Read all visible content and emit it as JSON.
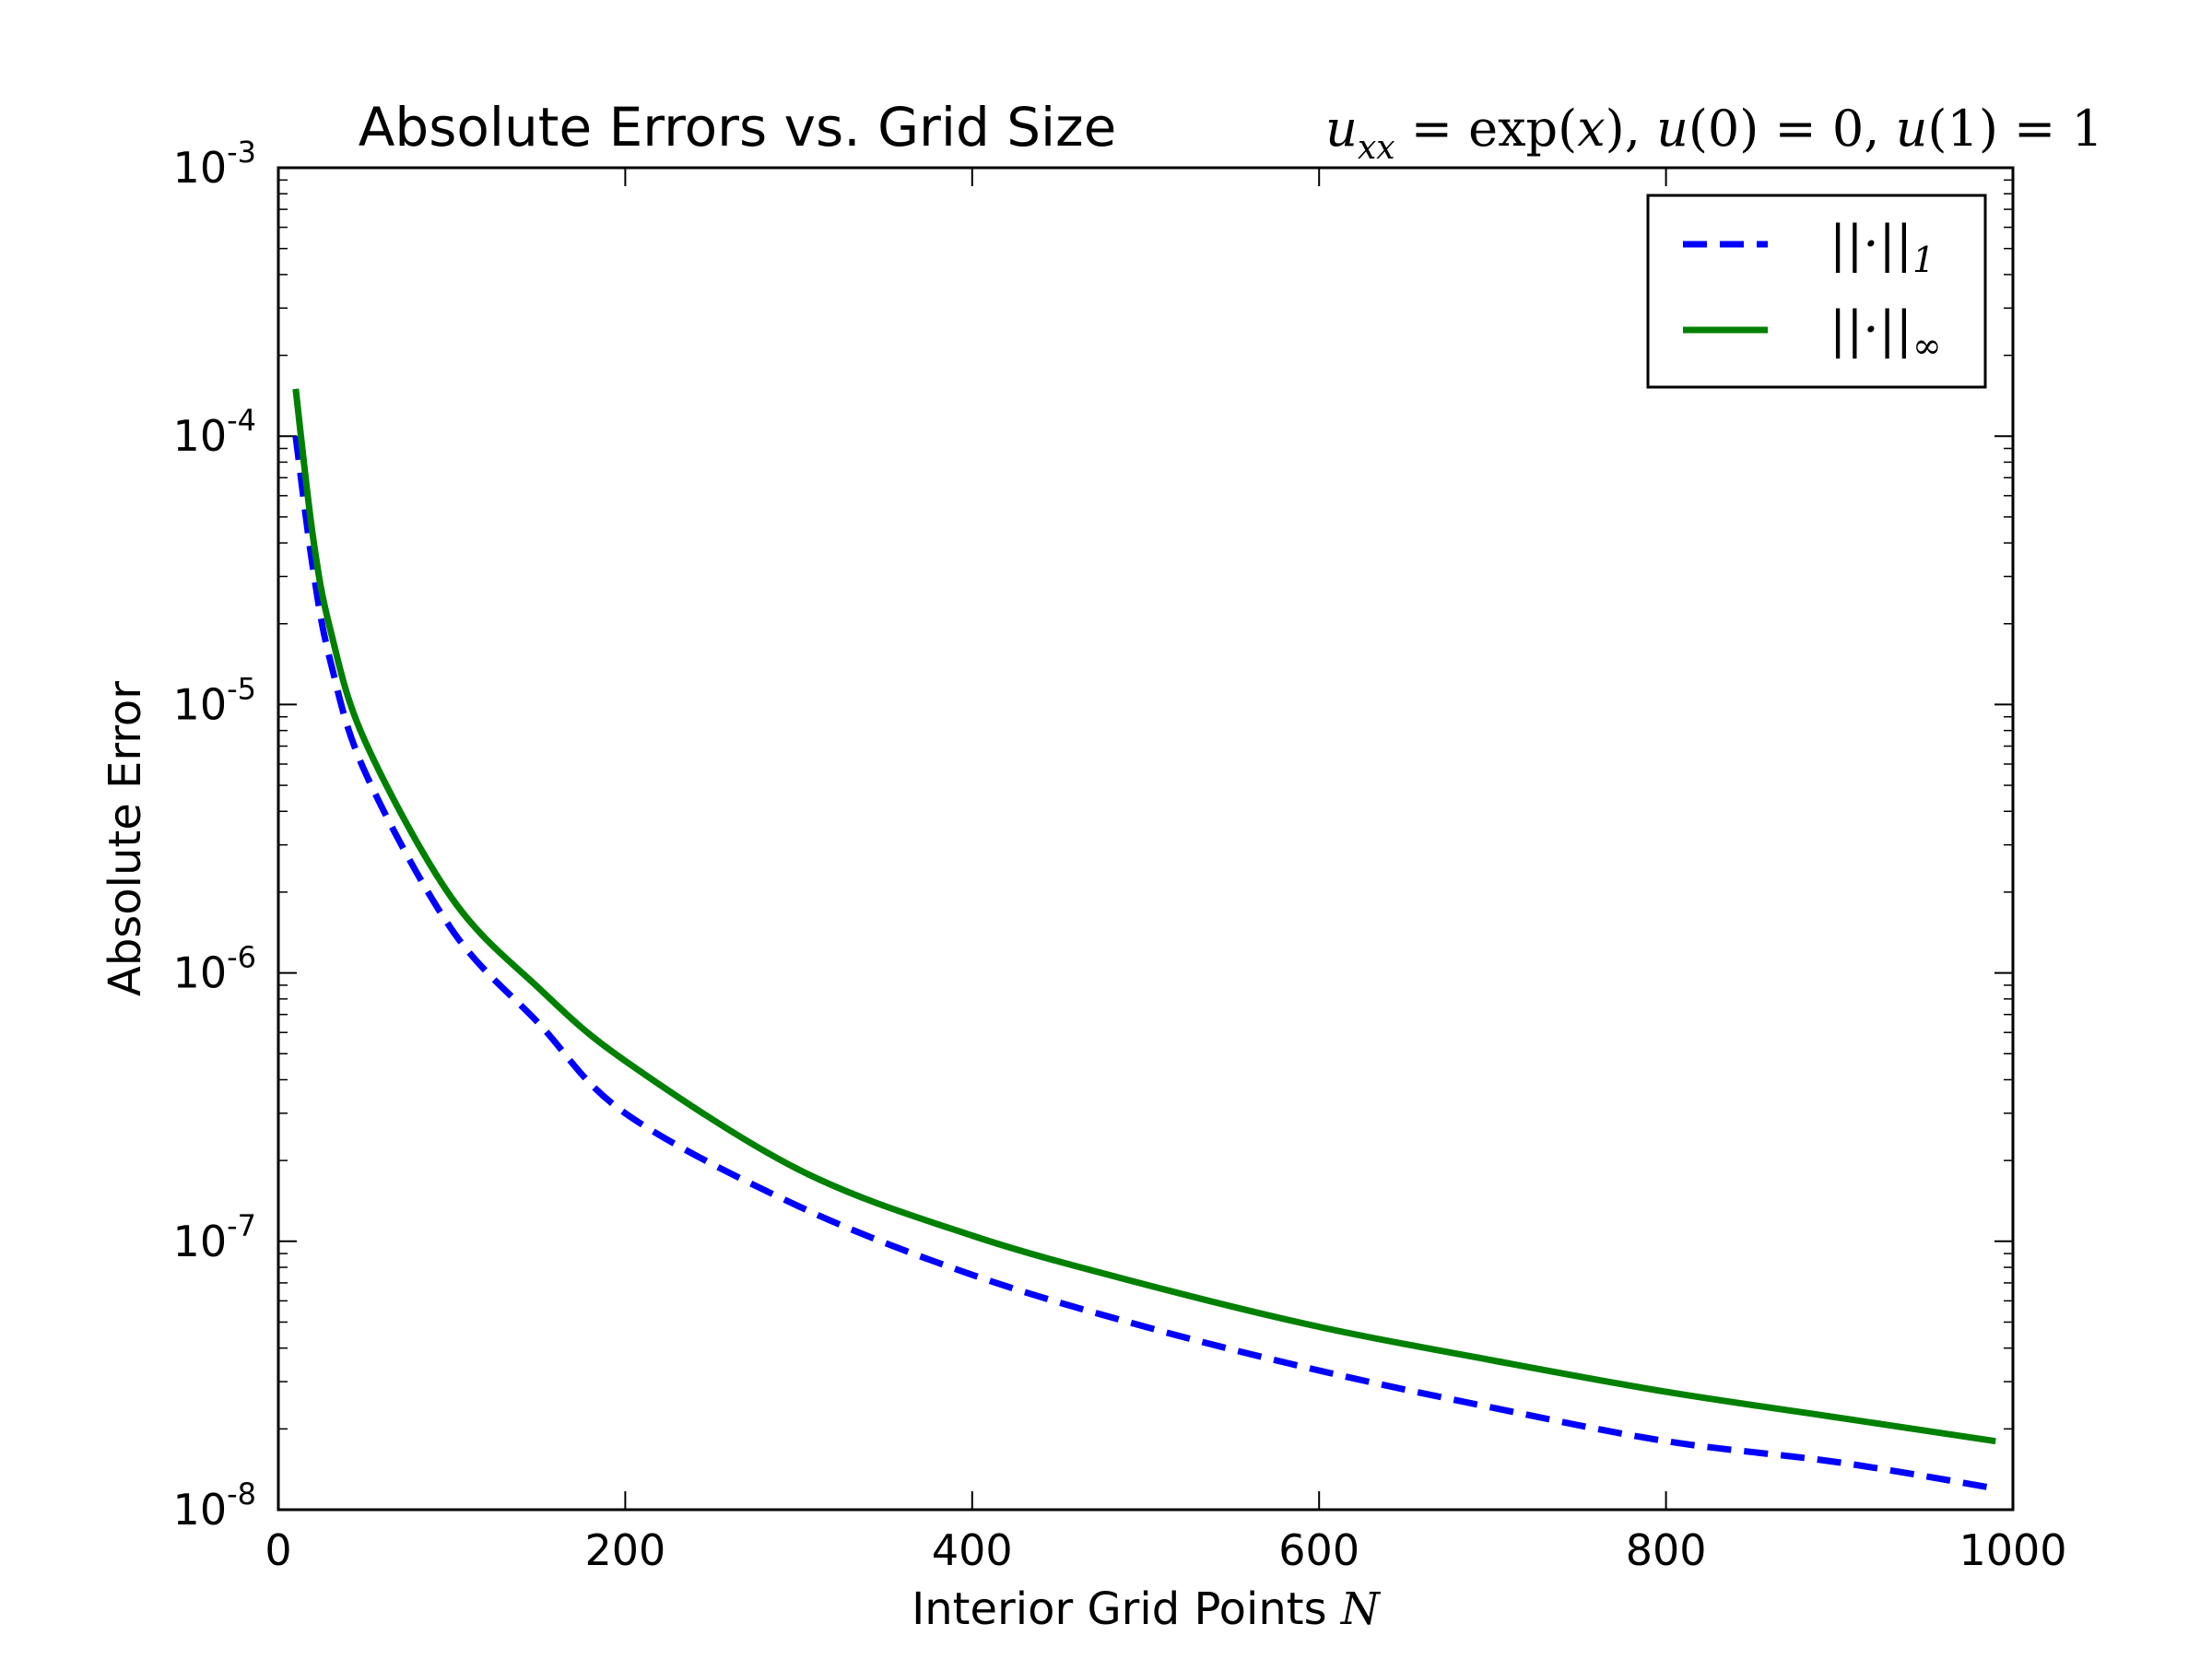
{
  "chart_data": {
    "type": "line",
    "title": "Absolute Errors vs. Grid Size",
    "subtitle": "u_xx = exp(x), u(0) = 0, u(1) = 1",
    "subtitle_parts": {
      "u": "u",
      "xx": "xx",
      "eq1": " = exp(",
      "x": "x",
      "close1": "), ",
      "u0": "u",
      "zero_arg": "(0) = 0, ",
      "u1": "u",
      "one_arg": "(1) = 1"
    },
    "xlabel": "Interior Grid Points N",
    "xlabel_text": "Interior Grid Points ",
    "xlabel_var": "N",
    "ylabel": "Absolute Error",
    "xlim": [
      0,
      1000
    ],
    "ylim": [
      1e-08,
      0.001
    ],
    "yscale": "log",
    "grid": false,
    "legend_position": "top-right",
    "x_ticks": [
      "0",
      "200",
      "400",
      "600",
      "800",
      "1000"
    ],
    "y_ticks": [
      {
        "base": "10",
        "exp": "-8"
      },
      {
        "base": "10",
        "exp": "-7"
      },
      {
        "base": "10",
        "exp": "-6"
      },
      {
        "base": "10",
        "exp": "-5"
      },
      {
        "base": "10",
        "exp": "-4"
      },
      {
        "base": "10",
        "exp": "-3"
      }
    ],
    "series": [
      {
        "name": "||·||₁",
        "legend_main": "||·||",
        "legend_sub": "1",
        "style": "dashed",
        "color": "#0000ff",
        "x": [
          10,
          20,
          30,
          50,
          100,
          150,
          200,
          300,
          400,
          500,
          600,
          700,
          800,
          900,
          990
        ],
        "y": [
          0.0001,
          3.2e-05,
          1.45e-05,
          5.6e-06,
          1.45e-06,
          6.5e-07,
          3e-07,
          1.35e-07,
          7.5e-08,
          4.8e-08,
          3.3e-08,
          2.4e-08,
          1.8e-08,
          1.5e-08,
          1.2e-08
        ]
      },
      {
        "name": "||·||∞",
        "legend_main": "||·||",
        "legend_sub": "∞",
        "style": "solid",
        "color": "#008000",
        "x": [
          10,
          20,
          30,
          50,
          100,
          150,
          200,
          300,
          400,
          500,
          600,
          700,
          800,
          900,
          990
        ],
        "y": [
          0.00015,
          4.2e-05,
          1.9e-05,
          7.3e-06,
          1.9e-06,
          8.8e-07,
          4.7e-07,
          1.85e-07,
          1.05e-07,
          6.9e-08,
          4.8e-08,
          3.6e-08,
          2.75e-08,
          2.2e-08,
          1.8e-08
        ]
      }
    ]
  }
}
